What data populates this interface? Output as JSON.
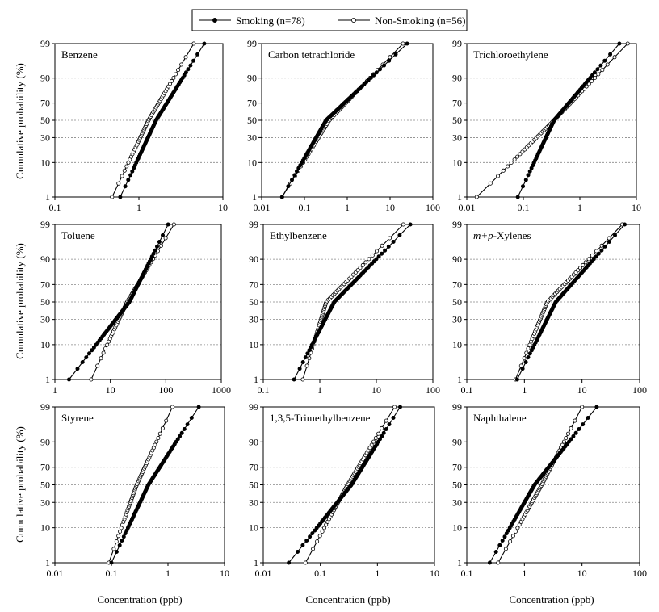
{
  "figure": {
    "legend": [
      {
        "label": "Smoking (n=78)",
        "marker": "filled"
      },
      {
        "label": "Non-Smoking (n=56)",
        "marker": "open"
      }
    ],
    "ylabel": "Cumulative probability (%)",
    "xlabel": "Concentration (ppb)"
  },
  "chart_data": [
    {
      "type": "line",
      "title": "Benzene",
      "title_italic_prefix": "",
      "xscale": "log",
      "xlim": [
        0.1,
        10
      ],
      "xticks": [
        0.1,
        1,
        10
      ],
      "xtick_labels": [
        "0.1",
        "1",
        "10"
      ],
      "yscale": "probability",
      "yticks": [
        1,
        10,
        30,
        50,
        70,
        90,
        99
      ],
      "ytick_labels": [
        "1",
        "10",
        "30",
        "50",
        "70",
        "90",
        "99"
      ],
      "series": [
        {
          "name": "Smoking (n=78)",
          "marker": "filled",
          "start": 0.6,
          "median": 1.6,
          "end": 6.0,
          "n": 78
        },
        {
          "name": "Non-Smoking (n=56)",
          "marker": "open",
          "start": 0.48,
          "median": 1.3,
          "end": 4.5,
          "n": 56
        }
      ]
    },
    {
      "type": "line",
      "title": "Carbon tetrachloride",
      "title_italic_prefix": "",
      "xscale": "log",
      "xlim": [
        0.01,
        100
      ],
      "xticks": [
        0.01,
        0.1,
        1,
        10,
        100
      ],
      "xtick_labels": [
        "0.01",
        "0.1",
        "1",
        "10",
        "100"
      ],
      "yscale": "probability",
      "yticks": [
        1,
        10,
        30,
        50,
        70,
        90,
        99
      ],
      "ytick_labels": [
        "1",
        "10",
        "30",
        "50",
        "70",
        "90",
        "99"
      ],
      "series": [
        {
          "name": "Smoking (n=78)",
          "marker": "filled",
          "start": 0.03,
          "median": 0.32,
          "end": 25,
          "n": 78
        },
        {
          "name": "Non-Smoking (n=56)",
          "marker": "open",
          "start": 0.03,
          "median": 0.38,
          "end": 20,
          "n": 56
        }
      ]
    },
    {
      "type": "line",
      "title": "Trichloroethylene",
      "title_italic_prefix": "",
      "xscale": "log",
      "xlim": [
        0.01,
        10
      ],
      "xticks": [
        0.01,
        0.1,
        1,
        10
      ],
      "xtick_labels": [
        "0.01",
        "0.1",
        "1",
        "10"
      ],
      "yscale": "probability",
      "yticks": [
        1,
        10,
        30,
        50,
        70,
        90,
        99
      ],
      "ytick_labels": [
        "1",
        "10",
        "30",
        "50",
        "70",
        "90",
        "99"
      ],
      "series": [
        {
          "name": "Smoking (n=78)",
          "marker": "filled",
          "start": 0.08,
          "median": 0.35,
          "end": 5.0,
          "n": 78
        },
        {
          "name": "Non-Smoking (n=56)",
          "marker": "open",
          "start": 0.015,
          "median": 0.35,
          "end": 7.0,
          "n": 56
        }
      ]
    },
    {
      "type": "line",
      "title": "Toluene",
      "title_italic_prefix": "",
      "xscale": "log",
      "xlim": [
        1,
        1000
      ],
      "xticks": [
        1,
        10,
        100,
        1000
      ],
      "xtick_labels": [
        "1",
        "10",
        "100",
        "1000"
      ],
      "yscale": "probability",
      "yticks": [
        1,
        10,
        30,
        50,
        70,
        90,
        99
      ],
      "ytick_labels": [
        "1",
        "10",
        "30",
        "50",
        "70",
        "90",
        "99"
      ],
      "series": [
        {
          "name": "Smoking (n=78)",
          "marker": "filled",
          "start": 1.8,
          "median": 22,
          "end": 110,
          "n": 78
        },
        {
          "name": "Non-Smoking (n=56)",
          "marker": "open",
          "start": 4.5,
          "median": 20,
          "end": 140,
          "n": 56
        }
      ]
    },
    {
      "type": "line",
      "title": "Ethylbenzene",
      "title_italic_prefix": "",
      "xscale": "log",
      "xlim": [
        0.1,
        100
      ],
      "xticks": [
        0.1,
        1,
        10,
        100
      ],
      "xtick_labels": [
        "0.1",
        "1",
        "10",
        "100"
      ],
      "yscale": "probability",
      "yticks": [
        1,
        10,
        30,
        50,
        70,
        90,
        99
      ],
      "ytick_labels": [
        "1",
        "10",
        "30",
        "50",
        "70",
        "90",
        "99"
      ],
      "series": [
        {
          "name": "Smoking (n=78)",
          "marker": "filled",
          "start": 0.35,
          "median": 1.8,
          "end": 40,
          "n": 78
        },
        {
          "name": "Non-Smoking (n=56)",
          "marker": "open",
          "start": 0.5,
          "median": 1.3,
          "end": 30,
          "n": 56
        }
      ]
    },
    {
      "type": "line",
      "title": "-Xylenes",
      "title_italic_prefix": "m+p",
      "xscale": "log",
      "xlim": [
        0.1,
        100
      ],
      "xticks": [
        0.1,
        1,
        10,
        100
      ],
      "xtick_labels": [
        "0.1",
        "1",
        "10",
        "100"
      ],
      "yscale": "probability",
      "yticks": [
        1,
        10,
        30,
        50,
        70,
        90,
        99
      ],
      "ytick_labels": [
        "1",
        "10",
        "30",
        "50",
        "70",
        "90",
        "99"
      ],
      "series": [
        {
          "name": "Smoking (n=78)",
          "marker": "filled",
          "start": 0.75,
          "median": 3.5,
          "end": 55,
          "n": 78
        },
        {
          "name": "Non-Smoking (n=56)",
          "marker": "open",
          "start": 0.7,
          "median": 2.5,
          "end": 50,
          "n": 56
        }
      ]
    },
    {
      "type": "line",
      "title": "Styrene",
      "title_italic_prefix": "",
      "xscale": "log",
      "xlim": [
        0.01,
        10
      ],
      "xticks": [
        0.01,
        0.1,
        1,
        10
      ],
      "xtick_labels": [
        "0.01",
        "0.1",
        "1",
        "10"
      ],
      "yscale": "probability",
      "yticks": [
        1,
        10,
        30,
        50,
        70,
        90,
        99
      ],
      "ytick_labels": [
        "1",
        "10",
        "30",
        "50",
        "70",
        "90",
        "99"
      ],
      "series": [
        {
          "name": "Smoking (n=78)",
          "marker": "filled",
          "start": 0.1,
          "median": 0.45,
          "end": 3.5,
          "n": 78
        },
        {
          "name": "Non-Smoking (n=56)",
          "marker": "open",
          "start": 0.09,
          "median": 0.28,
          "end": 1.2,
          "n": 56
        }
      ]
    },
    {
      "type": "line",
      "title": "1,3,5-Trimethylbenzene",
      "title_italic_prefix": "",
      "xscale": "log",
      "xlim": [
        0.01,
        10
      ],
      "xticks": [
        0.01,
        0.1,
        1,
        10
      ],
      "xtick_labels": [
        "0.01",
        "0.1",
        "1",
        "10"
      ],
      "yscale": "probability",
      "yticks": [
        1,
        10,
        30,
        50,
        70,
        90,
        99
      ],
      "ytick_labels": [
        "1",
        "10",
        "30",
        "50",
        "70",
        "90",
        "99"
      ],
      "series": [
        {
          "name": "Smoking (n=78)",
          "marker": "filled",
          "start": 0.028,
          "median": 0.35,
          "end": 2.5,
          "n": 78
        },
        {
          "name": "Non-Smoking (n=56)",
          "marker": "open",
          "start": 0.055,
          "median": 0.3,
          "end": 2.0,
          "n": 56
        }
      ]
    },
    {
      "type": "line",
      "title": "Naphthalene",
      "title_italic_prefix": "",
      "xscale": "log",
      "xlim": [
        0.1,
        100
      ],
      "xticks": [
        0.1,
        1,
        10,
        100
      ],
      "xtick_labels": [
        "0.1",
        "1",
        "10",
        "100"
      ],
      "yscale": "probability",
      "yticks": [
        1,
        10,
        30,
        50,
        70,
        90,
        99
      ],
      "ytick_labels": [
        "1",
        "10",
        "30",
        "50",
        "70",
        "90",
        "99"
      ],
      "series": [
        {
          "name": "Smoking (n=78)",
          "marker": "filled",
          "start": 0.25,
          "median": 1.5,
          "end": 18,
          "n": 78
        },
        {
          "name": "Non-Smoking (n=56)",
          "marker": "open",
          "start": 0.35,
          "median": 2.0,
          "end": 10,
          "n": 56
        }
      ]
    }
  ]
}
